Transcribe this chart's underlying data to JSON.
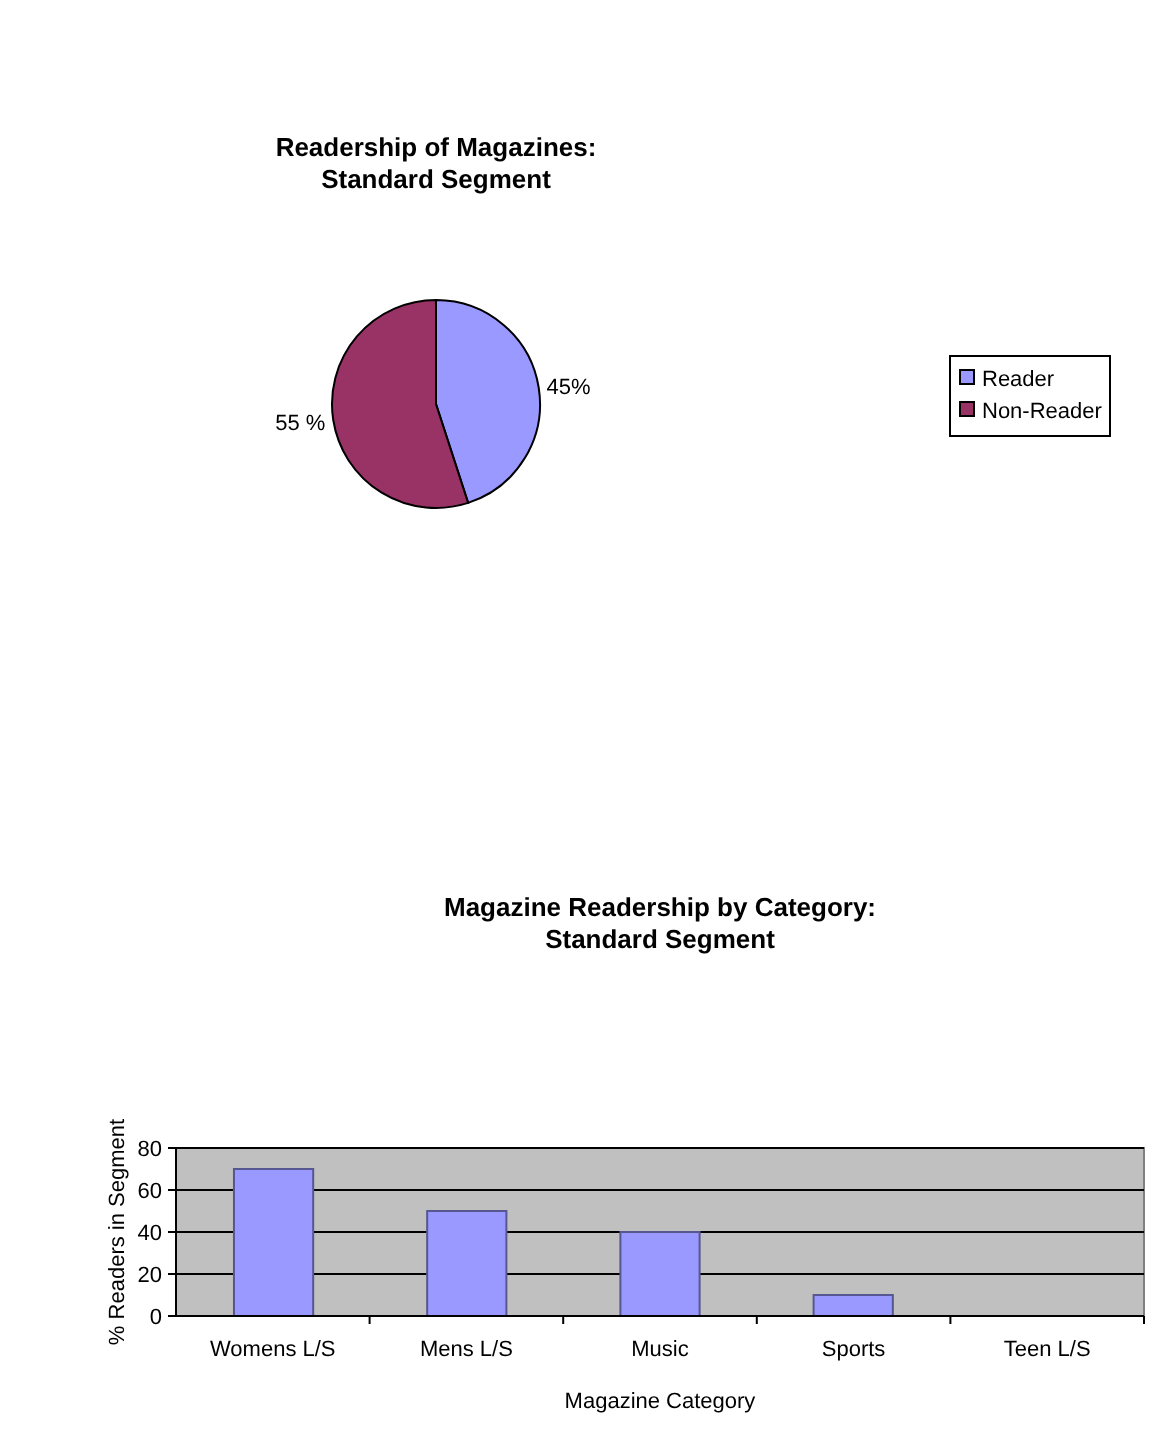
{
  "chart_data": [
    {
      "type": "pie",
      "title": "Readership of Magazines:\nStandard Segment",
      "categories": [
        "Reader",
        "Non-Reader"
      ],
      "values": [
        45,
        55
      ],
      "colors": [
        "#9999ff",
        "#993366"
      ],
      "value_labels": [
        "45%",
        "55 %"
      ],
      "legend": "right"
    },
    {
      "type": "bar",
      "title": "Magazine Readership by Category:\nStandard Segment",
      "xlabel": "Magazine Category",
      "ylabel": "% Readers in Segment",
      "categories": [
        "Womens L/S",
        "Mens L/S",
        "Music",
        "Sports",
        "Teen L/S"
      ],
      "values": [
        70,
        50,
        40,
        10,
        0
      ],
      "color": "#9999ff",
      "ylim": [
        0,
        80
      ],
      "yticks": [
        0,
        20,
        40,
        60,
        80
      ],
      "grid": "y"
    }
  ]
}
